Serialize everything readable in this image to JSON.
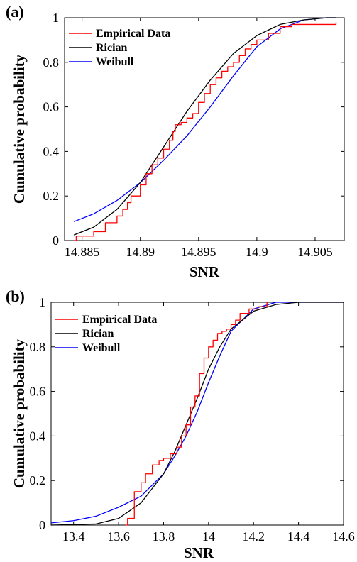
{
  "chart_data": [
    {
      "panel": "(a)",
      "type": "line",
      "xlabel": "SNR",
      "ylabel": "Cumulative probability",
      "xlim": [
        14.8835,
        14.9075
      ],
      "ylim": [
        0,
        1
      ],
      "xticks": [
        14.885,
        14.89,
        14.895,
        14.9,
        14.905
      ],
      "xtick_labels": [
        "14.885",
        "14.89",
        "14.895",
        "14.9",
        "14.905"
      ],
      "yticks": [
        0,
        0.2,
        0.4,
        0.6,
        0.8,
        1
      ],
      "ytick_labels": [
        "0",
        "0.2",
        "0.4",
        "0.6",
        "0.8",
        "1"
      ],
      "legend_position": "top-left",
      "grid": false,
      "series": [
        {
          "name": "Empirical Data",
          "color": "#ff0000",
          "style": "step",
          "x": [
            14.8843,
            14.8845,
            14.886,
            14.887,
            14.888,
            14.8885,
            14.8889,
            14.8892,
            14.89,
            14.8905,
            14.891,
            14.8915,
            14.892,
            14.8925,
            14.8928,
            14.893,
            14.8935,
            14.894,
            14.8945,
            14.895,
            14.8955,
            14.896,
            14.8965,
            14.897,
            14.8975,
            14.898,
            14.8985,
            14.899,
            14.8995,
            14.9,
            14.901,
            14.902,
            14.903,
            14.9068
          ],
          "y": [
            0,
            0.02,
            0.04,
            0.08,
            0.11,
            0.14,
            0.17,
            0.2,
            0.25,
            0.3,
            0.34,
            0.37,
            0.41,
            0.45,
            0.49,
            0.52,
            0.53,
            0.55,
            0.57,
            0.62,
            0.66,
            0.7,
            0.73,
            0.76,
            0.78,
            0.8,
            0.83,
            0.86,
            0.88,
            0.9,
            0.93,
            0.96,
            0.97,
            0.98
          ]
        },
        {
          "name": "Rician",
          "color": "#000000",
          "style": "line",
          "x": [
            14.8843,
            14.886,
            14.888,
            14.89,
            14.892,
            14.894,
            14.896,
            14.898,
            14.9,
            14.902,
            14.904,
            14.906,
            14.9068
          ],
          "y": [
            0.025,
            0.06,
            0.14,
            0.26,
            0.42,
            0.58,
            0.72,
            0.84,
            0.92,
            0.97,
            0.99,
            1.0,
            1.0
          ]
        },
        {
          "name": "Weibull",
          "color": "#0000ff",
          "style": "line",
          "x": [
            14.8843,
            14.886,
            14.888,
            14.89,
            14.892,
            14.894,
            14.896,
            14.898,
            14.9,
            14.902,
            14.904,
            14.906,
            14.9068
          ],
          "y": [
            0.085,
            0.12,
            0.18,
            0.26,
            0.36,
            0.47,
            0.6,
            0.74,
            0.87,
            0.95,
            0.99,
            1.0,
            1.0
          ]
        }
      ]
    },
    {
      "panel": "(b)",
      "type": "line",
      "xlabel": "SNR",
      "ylabel": "Cumulative probability",
      "xlim": [
        13.3,
        14.6
      ],
      "ylim": [
        0,
        1
      ],
      "xticks": [
        13.4,
        13.6,
        13.8,
        14.0,
        14.2,
        14.4,
        14.6
      ],
      "xtick_labels": [
        "13.4",
        "13.6",
        "13.8",
        "14",
        "14.2",
        "14.4",
        "14.6"
      ],
      "yticks": [
        0,
        0.2,
        0.4,
        0.6,
        0.8,
        1
      ],
      "ytick_labels": [
        "0",
        "0.2",
        "0.4",
        "0.6",
        "0.8",
        "1"
      ],
      "legend_position": "top-left",
      "grid": false,
      "series": [
        {
          "name": "Empirical Data",
          "color": "#ff0000",
          "style": "step",
          "x": [
            13.63,
            13.64,
            13.67,
            13.7,
            13.72,
            13.75,
            13.78,
            13.8,
            13.83,
            13.86,
            13.88,
            13.9,
            13.92,
            13.94,
            13.96,
            13.98,
            14.0,
            14.02,
            14.04,
            14.06,
            14.08,
            14.1,
            14.12,
            14.14,
            14.18,
            14.22,
            14.26
          ],
          "y": [
            0,
            0.03,
            0.15,
            0.19,
            0.23,
            0.27,
            0.29,
            0.3,
            0.32,
            0.35,
            0.4,
            0.45,
            0.53,
            0.58,
            0.68,
            0.75,
            0.8,
            0.83,
            0.86,
            0.87,
            0.88,
            0.9,
            0.92,
            0.95,
            0.97,
            0.98,
            1.0
          ]
        },
        {
          "name": "Rician",
          "color": "#000000",
          "style": "line",
          "x": [
            13.3,
            13.5,
            13.6,
            13.7,
            13.8,
            13.85,
            13.9,
            13.95,
            14.0,
            14.05,
            14.1,
            14.2,
            14.3,
            14.4,
            14.6
          ],
          "y": [
            0,
            0.005,
            0.03,
            0.1,
            0.23,
            0.33,
            0.45,
            0.57,
            0.7,
            0.8,
            0.88,
            0.96,
            0.99,
            1.0,
            1.0
          ]
        },
        {
          "name": "Weibull",
          "color": "#0000ff",
          "style": "line",
          "x": [
            13.3,
            13.4,
            13.5,
            13.6,
            13.7,
            13.8,
            13.85,
            13.9,
            13.95,
            14.0,
            14.05,
            14.1,
            14.2,
            14.3,
            14.4,
            14.6
          ],
          "y": [
            0.01,
            0.02,
            0.04,
            0.08,
            0.13,
            0.23,
            0.31,
            0.4,
            0.51,
            0.64,
            0.76,
            0.87,
            0.97,
            1.0,
            1.0,
            1.0
          ]
        }
      ]
    }
  ]
}
